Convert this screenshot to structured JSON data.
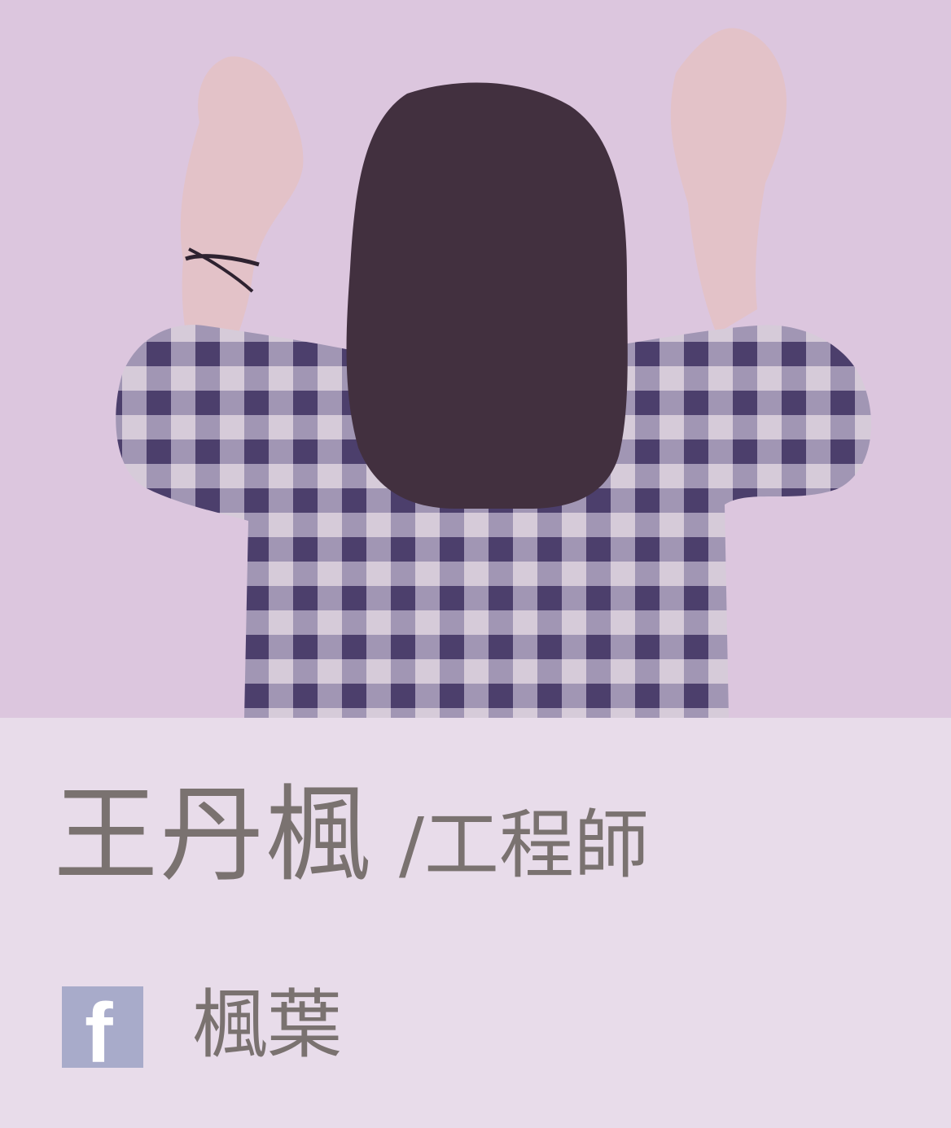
{
  "profile": {
    "photo_description_icon": "person-raising-hands-photo",
    "name": "王丹楓",
    "role": "/工程師",
    "social": {
      "icon": "facebook-icon",
      "icon_letter": "f",
      "label": "楓葉"
    }
  },
  "colors": {
    "photo_background": "#dcc6de",
    "panel_background": "#e8dcea",
    "text": "#7a7270",
    "facebook_icon": "#a8abca"
  }
}
